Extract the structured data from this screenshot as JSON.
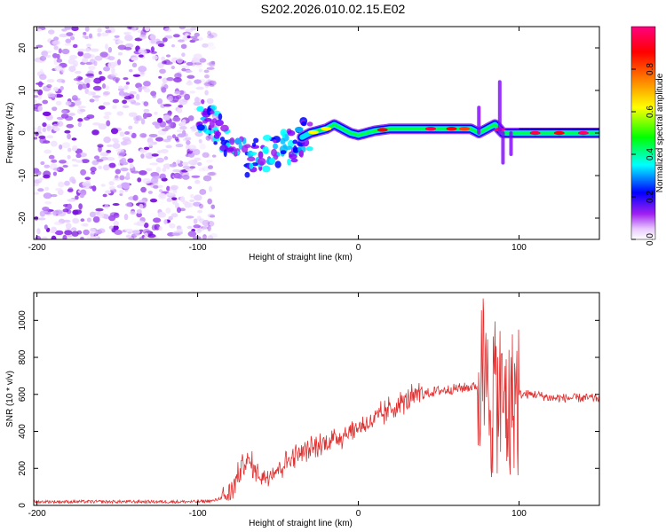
{
  "title": "S202.2026.010.02.15.E02",
  "chart_data": [
    {
      "type": "heatmap",
      "title": "S202.2026.010.02.15.E02",
      "xlabel": "Height of straight line (km)",
      "ylabel": "Frequency (Hz)",
      "xlim": [
        -202,
        150
      ],
      "ylim": [
        -25,
        25
      ],
      "xticks": [
        -200,
        -100,
        0,
        100
      ],
      "yticks": [
        -20,
        -10,
        0,
        10,
        20
      ],
      "colorbar": {
        "label": "Normalized spectral amplitude",
        "range": [
          0,
          1
        ],
        "ticks": [
          0.0,
          0.2,
          0.4,
          0.6,
          0.8
        ],
        "colors": [
          "#ffffff",
          "#c878f0",
          "#8000ff",
          "#0000ff",
          "#00ffff",
          "#00ff00",
          "#ffff00",
          "#ff8000",
          "#ff0000",
          "#ff0080"
        ]
      },
      "ridge": {
        "x": [
          -100,
          -90,
          -80,
          -70,
          -60,
          -50,
          -40,
          -35,
          -30,
          -20,
          -15,
          -10,
          -5,
          0,
          10,
          20,
          40,
          60,
          70,
          75,
          80,
          85,
          90,
          95,
          100,
          120,
          150
        ],
        "y": [
          4,
          2,
          -2,
          -6,
          -5,
          -4,
          -3,
          -1,
          0,
          1,
          2,
          1,
          0,
          -0.5,
          0.5,
          1,
          1,
          1,
          1,
          0,
          1,
          2,
          0,
          0,
          0,
          0,
          0
        ]
      }
    },
    {
      "type": "line",
      "xlabel": "Height of straight line (km)",
      "ylabel": "SNR (10 * v/v)",
      "xlim": [
        -202,
        150
      ],
      "ylim": [
        0,
        1150
      ],
      "xticks": [
        -200,
        -100,
        0,
        100
      ],
      "yticks": [
        0,
        200,
        400,
        600,
        800,
        1000
      ],
      "series": [
        {
          "name": "SNR",
          "color": "#e03030",
          "x": [
            -202,
            -150,
            -100,
            -90,
            -80,
            -75,
            -70,
            -60,
            -50,
            -40,
            -30,
            -20,
            -10,
            0,
            10,
            20,
            30,
            40,
            50,
            60,
            70,
            75,
            78,
            80,
            85,
            90,
            95,
            100,
            110,
            120,
            130,
            140,
            150
          ],
          "values": [
            20,
            20,
            20,
            25,
            60,
            160,
            250,
            150,
            200,
            270,
            300,
            340,
            380,
            420,
            460,
            520,
            570,
            600,
            620,
            630,
            640,
            650,
            700,
            560,
            620,
            560,
            560,
            600,
            600,
            580,
            580,
            580,
            580
          ]
        }
      ]
    }
  ]
}
